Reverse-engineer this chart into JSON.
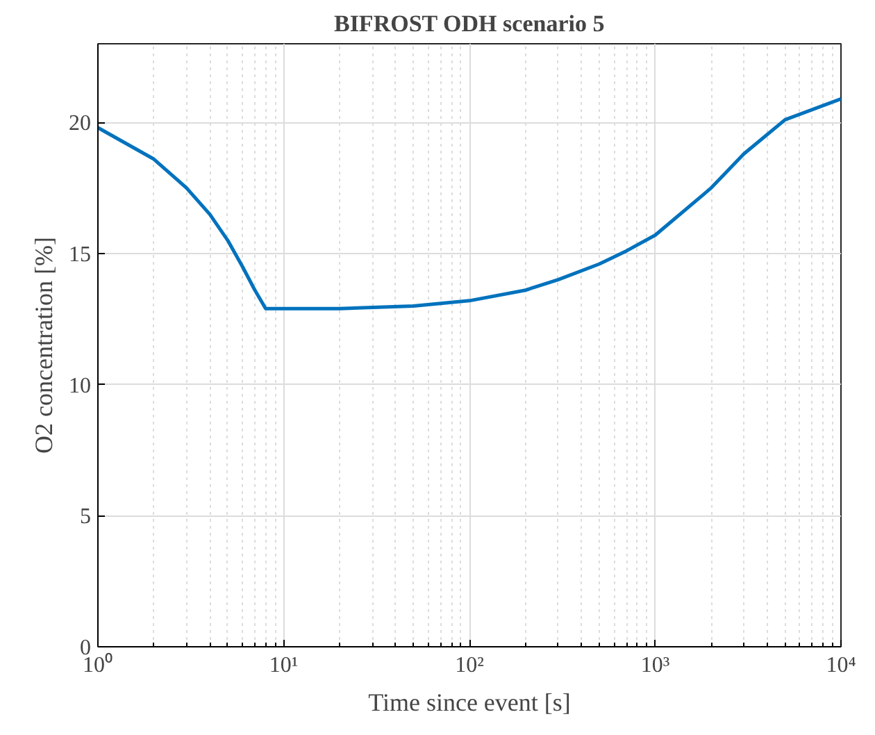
{
  "chart_data": {
    "type": "line",
    "title": "BIFROST ODH scenario 5",
    "xlabel": "Time since event [s]",
    "ylabel": "O2 concentration [%]",
    "log": "x",
    "x": [
      1,
      2,
      3,
      4,
      5,
      6,
      7,
      8,
      10,
      20,
      50,
      100,
      200,
      300,
      500,
      700,
      1000,
      2000,
      3000,
      5000,
      10000
    ],
    "series": [
      {
        "color": "#0072bd",
        "values": [
          19.8,
          18.6,
          17.5,
          16.5,
          15.5,
          14.5,
          13.6,
          12.9,
          12.9,
          12.9,
          13.0,
          13.2,
          13.6,
          14.0,
          14.6,
          15.1,
          15.7,
          17.5,
          18.8,
          20.1,
          20.9
        ]
      }
    ],
    "xlim": [
      1,
      10000
    ],
    "ylim": [
      0,
      23
    ],
    "xticks": [
      {
        "value": 1,
        "label": "10⁰"
      },
      {
        "value": 10,
        "label": "10¹"
      },
      {
        "value": 100,
        "label": "10²"
      },
      {
        "value": 1000,
        "label": "10³"
      },
      {
        "value": 10000,
        "label": "10⁴"
      }
    ],
    "yticks": [
      0,
      5,
      10,
      15,
      20
    ],
    "grid": true,
    "line_style": "solid"
  }
}
